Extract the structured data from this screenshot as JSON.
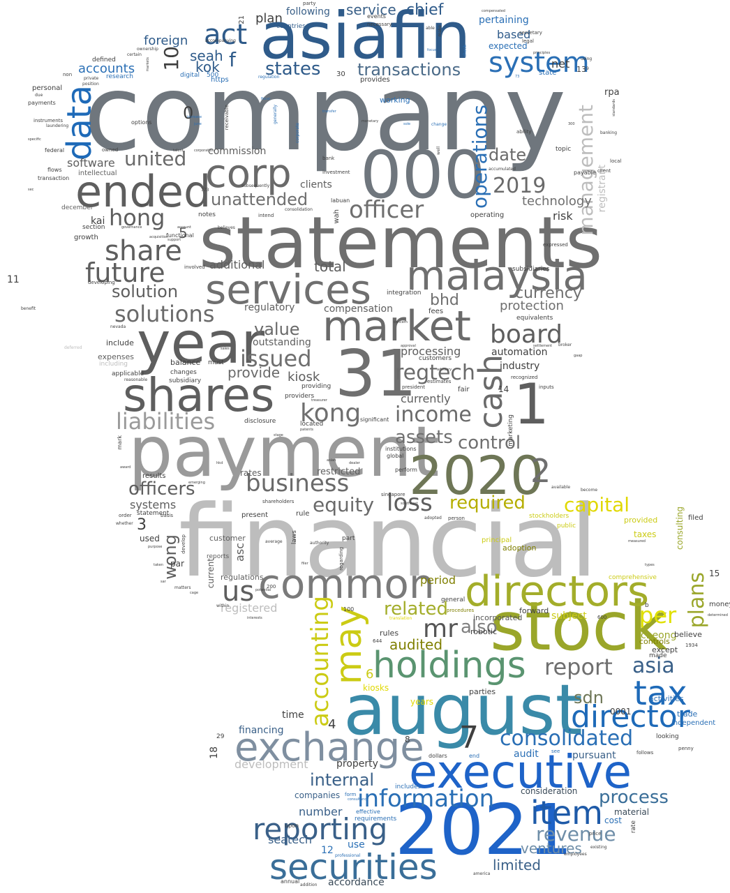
{
  "colors": {
    "slate": "#6f767d",
    "darkgray": "#5e5e5e",
    "gray": "#8a8a8a",
    "lightgray": "#bdbdbd",
    "navy": "#2f5b8a",
    "blue": "#1e63c8",
    "teal": "#3a8aa8",
    "olive": "#9aa62a",
    "yellow": "#e0e000",
    "green": "#5a9470"
  },
  "words": {
    "company": "company",
    "financial": "financial",
    "statements": "statements",
    "asiafin": "asiafin",
    "payment": "payment",
    "stock": "stock",
    "august": "august",
    "n2021": "2021",
    "n2020": "2020",
    "n000": "000",
    "n31": "31",
    "executive": "executive",
    "directors": "directors",
    "exchange": "exchange",
    "market": "market",
    "shares": "shares",
    "services": "services",
    "year": "year",
    "ended": "ended",
    "corp": "corp",
    "malaysia": "malaysia",
    "common": "common",
    "holdings": "holdings",
    "securities": "securities",
    "director": "director",
    "reporting": "reporting",
    "information": "information",
    "item": "item",
    "tax": "tax",
    "data": "data",
    "act": "act",
    "system": "system",
    "cash": "cash",
    "may": "may",
    "n1": "1",
    "n2": "2",
    "n7": "7",
    "consolidated": "consolidated",
    "share": "share",
    "future": "future",
    "business": "business",
    "officer": "officer",
    "solutions": "solutions",
    "board": "board",
    "transactions": "transactions",
    "states": "states",
    "issued": "issued",
    "liabilities": "liabilities",
    "kong": "kong",
    "hong": "hong",
    "united": "united",
    "unattended": "unattended",
    "n2019": "2019",
    "operations": "operations",
    "management": "management",
    "accounting": "accounting",
    "revenue": "revenue",
    "report": "report",
    "asia": "asia",
    "mr": "mr",
    "capital": "capital",
    "required": "required",
    "loss": "loss",
    "equity": "equity",
    "officers": "officers",
    "income": "income",
    "regtech": "regtech",
    "control": "control",
    "assets": "assets",
    "per": "per",
    "plans": "plans",
    "related": "related",
    "also": "also",
    "us": "us",
    "process": "process",
    "internal": "internal",
    "limited": "limited",
    "ventures": "ventures",
    "sdn": "sdn",
    "audited": "audited",
    "value": "value",
    "solution": "solution",
    "bhd": "bhd",
    "currency": "currency",
    "protection": "protection",
    "technology": "technology",
    "service": "service",
    "chief": "chief",
    "accounts": "accounts",
    "foreign": "foreign",
    "seah": "seah",
    "kok": "kok",
    "f": "f",
    "n10": "10",
    "n0": "0",
    "plan": "plan",
    "following": "following",
    "based": "based",
    "pertaining": "pertaining",
    "expected": "expected",
    "net": "net",
    "software": "software",
    "commission": "commission",
    "date": "date",
    "total": "total",
    "additional": "additional",
    "clients": "clients",
    "kiosk": "kiosk",
    "provide": "provide",
    "processing": "processing",
    "automation": "automation",
    "industry": "industry",
    "currently": "currently",
    "wong": "wong",
    "n3": "3",
    "n5": "5",
    "kai": "kai",
    "systems": "systems",
    "risk": "risk",
    "regulatory": "regulatory",
    "compensation": "compensation",
    "outstanding": "outstanding",
    "period": "period",
    "subject": "subject",
    "incorporated": "incorporated",
    "cheong": "cheong",
    "asc": "asc",
    "registered": "registered",
    "development": "development",
    "financing": "financing",
    "time": "time",
    "property": "property",
    "number": "number",
    "companies": "companies",
    "seatech": "seatech",
    "use": "use",
    "n12": "12",
    "accordance": "accordance",
    "consideration": "consideration",
    "material": "material",
    "cost": "cost",
    "audit": "audit",
    "pursuant": "pursuant",
    "kiosks": "kiosks",
    "years": "years",
    "parties": "parties",
    "n0001": "0001",
    "activities": "activities",
    "trade": "trade",
    "independent": "independent",
    "n4": "4",
    "n6": "6",
    "n8": "8",
    "n11": "11",
    "n13": "13",
    "n14": "14",
    "n15": "15",
    "n18": "18",
    "n29": "29",
    "consulting": "consulting",
    "filed": "filed",
    "money": "money",
    "taxes": "taxes",
    "provided": "provided",
    "adoption": "adoption",
    "principal": "principal",
    "comprehensive": "comprehensive",
    "believe": "believe",
    "except": "except",
    "made": "made",
    "controls": "controls",
    "forward": "forward",
    "rules": "rules",
    "robotic": "robotic",
    "general": "general",
    "current": "current",
    "regulations": "regulations",
    "customer": "customer",
    "reports": "reports",
    "par": "par",
    "used": "used",
    "statement": "statement",
    "results": "results",
    "restricted": "restricted",
    "rates": "rates",
    "present": "present",
    "rule": "rule",
    "laws": "laws",
    "part": "part",
    "customers": "customers",
    "include": "include",
    "expenses": "expenses",
    "including": "including",
    "balance": "balance",
    "must": "must",
    "changes": "changes",
    "subsidiary": "subsidiary",
    "applicable": "applicable",
    "providers": "providers",
    "providing": "providing",
    "disclosure": "disclosure",
    "located": "located",
    "significant": "significant",
    "institutions": "institutions",
    "global": "global",
    "perform": "perform",
    "singapore": "singapore",
    "marketing": "marketing",
    "recognized": "recognized",
    "inputs": "inputs",
    "fair": "fair",
    "estimates": "estimates",
    "president": "president",
    "equivalents": "equivalents",
    "fees": "fees",
    "integration": "integration",
    "subsidiaries": "subsidiaries",
    "expressed": "expressed",
    "registrant": "registrant",
    "rpa": "rpa",
    "ability": "ability",
    "topic": "topic",
    "payable": "payable",
    "client": "client",
    "local": "local",
    "banking": "banking",
    "accumulated": "accumulated",
    "operating": "operating",
    "working": "working",
    "provides": "provides",
    "https": "https",
    "digital": "digital",
    "n500": "500",
    "research": "research",
    "defined": "defined",
    "personal": "personal",
    "payments": "payments",
    "instruments": "instruments",
    "laundering": "laundering",
    "options": "options",
    "federal": "federal",
    "flows": "flows",
    "transaction": "transaction",
    "intellectual": "intellectual",
    "december": "december",
    "section": "section",
    "growth": "growth",
    "notes": "notes",
    "functional": "functional",
    "receivable": "receivable",
    "bank": "bank",
    "investment": "investment",
    "labuan": "labuan",
    "wah": "wah",
    "intend": "intend",
    "consolidation": "consolidation",
    "subsequently": "subsequently",
    "believes": "believes",
    "involved": "involved",
    "developing": "developing",
    "benefit": "benefit",
    "deferred": "deferred",
    "nevada": "nevada",
    "whether": "whether",
    "order": "order",
    "basis": "basis",
    "reasonable": "reasonable",
    "mark": "mark",
    "shareholders": "shareholders",
    "develop": "develop",
    "average": "average",
    "authority": "authority",
    "regarding": "regarding",
    "translation": "translation",
    "procedures": "procedures",
    "within": "within",
    "n200": "200",
    "n100": "100",
    "n644": "644",
    "n1934": "1934",
    "penny": "penny",
    "looking": "looking",
    "follows": "follows",
    "dollars": "dollars",
    "end": "end",
    "see": "see",
    "includes": "includes",
    "form": "form",
    "requirements": "requirements",
    "effective": "effective",
    "professional": "professional",
    "upon": "upon",
    "annual": "annual",
    "addition": "addition",
    "price": "price",
    "employees": "employees",
    "existing": "existing",
    "america": "america",
    "rate": "rate",
    "n600": "600",
    "stockholders": "stockholders",
    "public": "public",
    "b": "b",
    "n30": "30",
    "n21": "21",
    "party": "party",
    "events": "events",
    "countries": "countries",
    "necessary": "necessary",
    "able": "able",
    "make": "make",
    "secretary": "secretary",
    "legal": "legal",
    "using": "using",
    "compensated": "compensated",
    "principles": "principles",
    "state": "state",
    "accompanying": "accompanying",
    "certain": "certain",
    "ownership": "ownership",
    "non": "non",
    "private": "private",
    "position": "position",
    "markets": "markets",
    "regulation": "regulation",
    "check": "check",
    "focus": "focus",
    "n73": "73",
    "n9": "9",
    "become": "become",
    "available": "available",
    "broker": "broker",
    "gaap": "gaap",
    "standards": "standards",
    "settlement": "settlement",
    "n300": "300",
    "owned": "owned",
    "due": "due",
    "specific": "specific",
    "sec": "sec",
    "june": "june",
    "increase": "increase",
    "change": "change",
    "talent": "talent",
    "corporation": "corporation",
    "corporate": "corporate",
    "generally": "generally",
    "fiscal": "fiscal",
    "transfer": "transfer",
    "monetary": "monetary",
    "sole": "sole",
    "well": "well",
    "n773": "773",
    "action": "action",
    "governance": "governance",
    "support": "support",
    "account": "account",
    "acquisition": "acquisition",
    "consultancy": "consultancy",
    "matters": "matters",
    "purpose": "purpose",
    "taken": "taken",
    "cage": "cage",
    "sar": "sar",
    "southeast": "southeast",
    "patents": "patents",
    "hkd": "hkd",
    "stage": "stage",
    "asian": "asian",
    "dealer": "dealer",
    "concern": "concern",
    "approval": "approval",
    "advisory": "advisory",
    "treasurer": "treasurer",
    "potential": "potential",
    "interests": "interests",
    "filer": "filer",
    "award": "award",
    "emerging": "emerging",
    "determined": "determined",
    "types": "types",
    "measured": "measured",
    "sales": "sales",
    "adopted": "adopted",
    "person": "person"
  }
}
